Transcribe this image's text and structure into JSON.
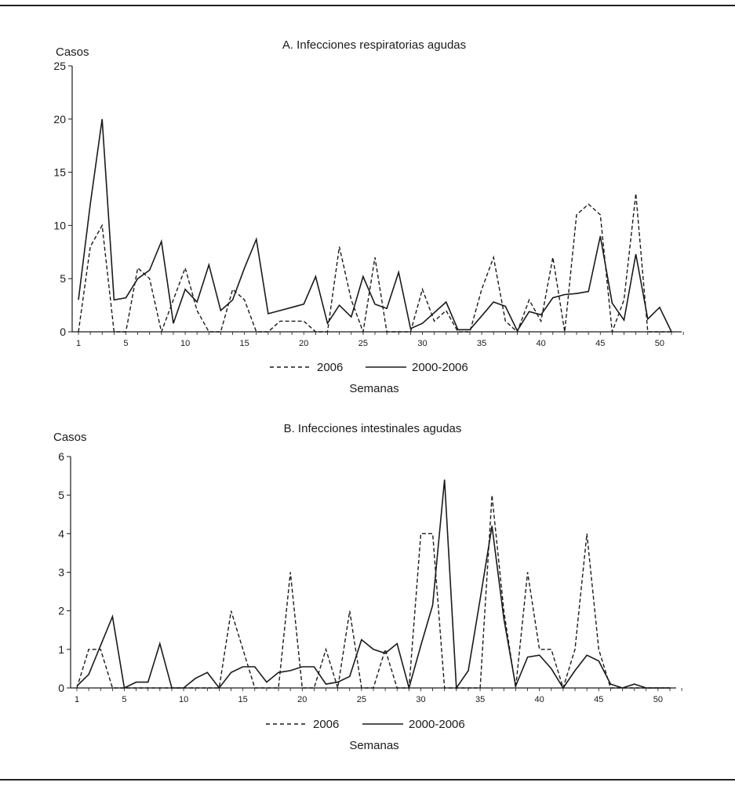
{
  "chart_data": [
    {
      "type": "line",
      "title": "A. Infecciones respiratorias agudas",
      "ylabel": "Casos",
      "xlabel": "Semanas",
      "ylim": [
        0,
        25
      ],
      "yticks": [
        0,
        5,
        10,
        15,
        20,
        25
      ],
      "xlim": [
        1,
        52
      ],
      "xticks": [
        1,
        5,
        10,
        15,
        20,
        25,
        30,
        35,
        40,
        45,
        50
      ],
      "legend": "bottom",
      "series": [
        {
          "name": "2006",
          "style": "dashed",
          "x": [
            1,
            2,
            3,
            4,
            5,
            6,
            7,
            8,
            9,
            10,
            11,
            12,
            13,
            14,
            15,
            16,
            17,
            18,
            19,
            20,
            21,
            22,
            23,
            24,
            25,
            26,
            27,
            28,
            29,
            30,
            31,
            32,
            33,
            34,
            35,
            36,
            37,
            38,
            39,
            40,
            41,
            42,
            43,
            44,
            45,
            46,
            47,
            48,
            49,
            50,
            51
          ],
          "values": [
            0,
            8,
            10,
            0,
            0,
            6,
            5,
            0,
            3,
            6,
            2,
            0,
            0,
            4,
            3,
            0,
            0,
            1,
            1,
            1,
            0,
            0,
            8,
            3,
            0,
            7,
            0,
            0,
            0,
            4,
            1,
            2,
            0,
            0,
            4,
            7,
            1,
            0,
            3,
            1,
            7,
            0,
            11,
            12,
            11,
            0,
            3,
            13,
            0,
            0,
            0
          ]
        },
        {
          "name": "2000-2006",
          "style": "solid",
          "x": [
            1,
            2,
            3,
            4,
            5,
            6,
            7,
            8,
            9,
            10,
            11,
            12,
            13,
            14,
            15,
            16,
            17,
            18,
            19,
            20,
            21,
            22,
            23,
            24,
            25,
            26,
            27,
            28,
            29,
            30,
            31,
            32,
            33,
            34,
            35,
            36,
            37,
            38,
            39,
            40,
            41,
            42,
            43,
            44,
            45,
            46,
            47,
            48,
            49,
            50,
            51
          ],
          "values": [
            3,
            12,
            20,
            3,
            3.2,
            5,
            5.8,
            8.5,
            0.8,
            4,
            2.8,
            6.3,
            2,
            3,
            6,
            8.7,
            1.7,
            2,
            2.3,
            2.6,
            5.2,
            0.8,
            2.5,
            1.4,
            5.2,
            2.6,
            2.2,
            5.6,
            0.3,
            0.8,
            1.8,
            2.8,
            0.2,
            0.2,
            1.5,
            2.8,
            2.4,
            0.1,
            1.9,
            1.6,
            3.2,
            3.5,
            3.6,
            3.8,
            9,
            2.7,
            1.1,
            7.3,
            1.2,
            2.3,
            0
          ]
        }
      ]
    },
    {
      "type": "line",
      "title": "B. Infecciones intestinales agudas",
      "ylabel": "Casos",
      "xlabel": "Semanas",
      "ylim": [
        0,
        6
      ],
      "yticks": [
        0,
        1,
        2,
        3,
        4,
        5,
        6
      ],
      "xlim": [
        1,
        52
      ],
      "xticks": [
        1,
        5,
        10,
        15,
        20,
        25,
        30,
        35,
        40,
        45,
        50
      ],
      "legend": "bottom",
      "series": [
        {
          "name": "2006",
          "style": "dashed",
          "x": [
            1,
            2,
            3,
            4,
            5,
            6,
            7,
            8,
            9,
            10,
            11,
            12,
            13,
            14,
            15,
            16,
            17,
            18,
            19,
            20,
            21,
            22,
            23,
            24,
            25,
            26,
            27,
            28,
            29,
            30,
            31,
            32,
            33,
            34,
            35,
            36,
            37,
            38,
            39,
            40,
            41,
            42,
            43,
            44,
            45,
            46,
            47,
            48,
            49,
            50,
            51
          ],
          "values": [
            0,
            1,
            1,
            0,
            0,
            0,
            0,
            0,
            0,
            0,
            0,
            0,
            0,
            2,
            1,
            0,
            0,
            0,
            3,
            0,
            0,
            1,
            0,
            2,
            0,
            0,
            1,
            0,
            0,
            4,
            4,
            0,
            0,
            0,
            0,
            5,
            2,
            0,
            3,
            1,
            1,
            0,
            1,
            4,
            1,
            0,
            0,
            0,
            0,
            0,
            0
          ]
        },
        {
          "name": "2000-2006",
          "style": "solid",
          "x": [
            1,
            2,
            3,
            4,
            5,
            6,
            7,
            8,
            9,
            10,
            11,
            12,
            13,
            14,
            15,
            16,
            17,
            18,
            19,
            20,
            21,
            22,
            23,
            24,
            25,
            26,
            27,
            28,
            29,
            30,
            31,
            32,
            33,
            34,
            35,
            36,
            37,
            38,
            39,
            40,
            41,
            42,
            43,
            44,
            45,
            46,
            47,
            48,
            49,
            50,
            51
          ],
          "values": [
            0.05,
            0.35,
            1.1,
            1.85,
            0,
            0.15,
            0.15,
            1.15,
            0,
            0,
            0.25,
            0.4,
            0,
            0.4,
            0.55,
            0.55,
            0.15,
            0.4,
            0.45,
            0.55,
            0.55,
            0.1,
            0.15,
            0.3,
            1.25,
            1,
            0.9,
            1.15,
            0,
            1.1,
            2.15,
            5.4,
            0,
            0.45,
            2.3,
            4.2,
            1.8,
            0.05,
            0.8,
            0.85,
            0.5,
            0,
            0.45,
            0.85,
            0.7,
            0.1,
            0,
            0.1,
            0,
            0,
            0
          ]
        }
      ]
    }
  ]
}
